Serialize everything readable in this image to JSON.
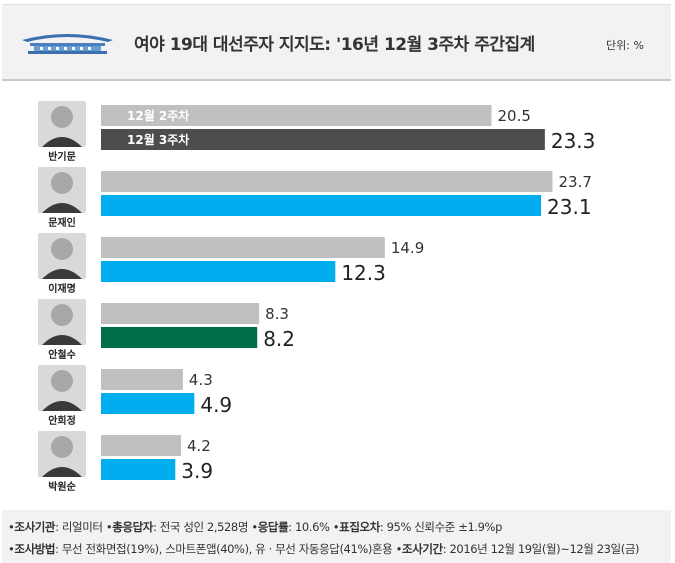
{
  "header": {
    "title": "여야 19대 대선주자 지지도: '16년 12월 3주차 주간집계",
    "unit": "단위: %"
  },
  "colors": {
    "prev_week": "#c0c0c0",
    "moon_bar": "#00aeef",
    "ban_bar": "#4d4d4d",
    "ahn_bar": "#006e47",
    "label_prev": "#333333",
    "label_cur": "#222222"
  },
  "chart_data": {
    "type": "bar",
    "orientation": "horizontal",
    "categories": [
      "반기문",
      "문재인",
      "이재명",
      "안철수",
      "안희정",
      "박원순"
    ],
    "series": [
      {
        "name": "12월 2주차",
        "values": [
          20.5,
          23.7,
          14.9,
          8.3,
          4.3,
          4.2
        ]
      },
      {
        "name": "12월 3주차",
        "values": [
          23.3,
          23.1,
          12.3,
          8.2,
          4.9,
          3.9
        ]
      }
    ],
    "bar_colors_current": [
      "#4d4d4d",
      "#00aeef",
      "#00aeef",
      "#006e47",
      "#00aeef",
      "#00aeef"
    ],
    "legend": "inside-first-bars",
    "xlim": [
      0,
      25
    ]
  },
  "footer": {
    "line1": [
      {
        "label": "조사기관",
        "value": ": 리얼미터"
      },
      {
        "label": "총응답자",
        "value": ": 전국 성인 2,528명"
      },
      {
        "label": "응답률",
        "value": ": 10.6%"
      },
      {
        "label": "표집오차",
        "value": ": 95% 신뢰수준 ±1.9%p"
      }
    ],
    "line2": [
      {
        "label": "조사방법",
        "value": ": 무선 전화면접(19%), 스마트폰앱(40%), 유 · 무선 자동응답(41%)혼용"
      },
      {
        "label": "조사기간",
        "value": ": 2016년 12월 19일(월)~12월 23일(금)"
      }
    ]
  }
}
